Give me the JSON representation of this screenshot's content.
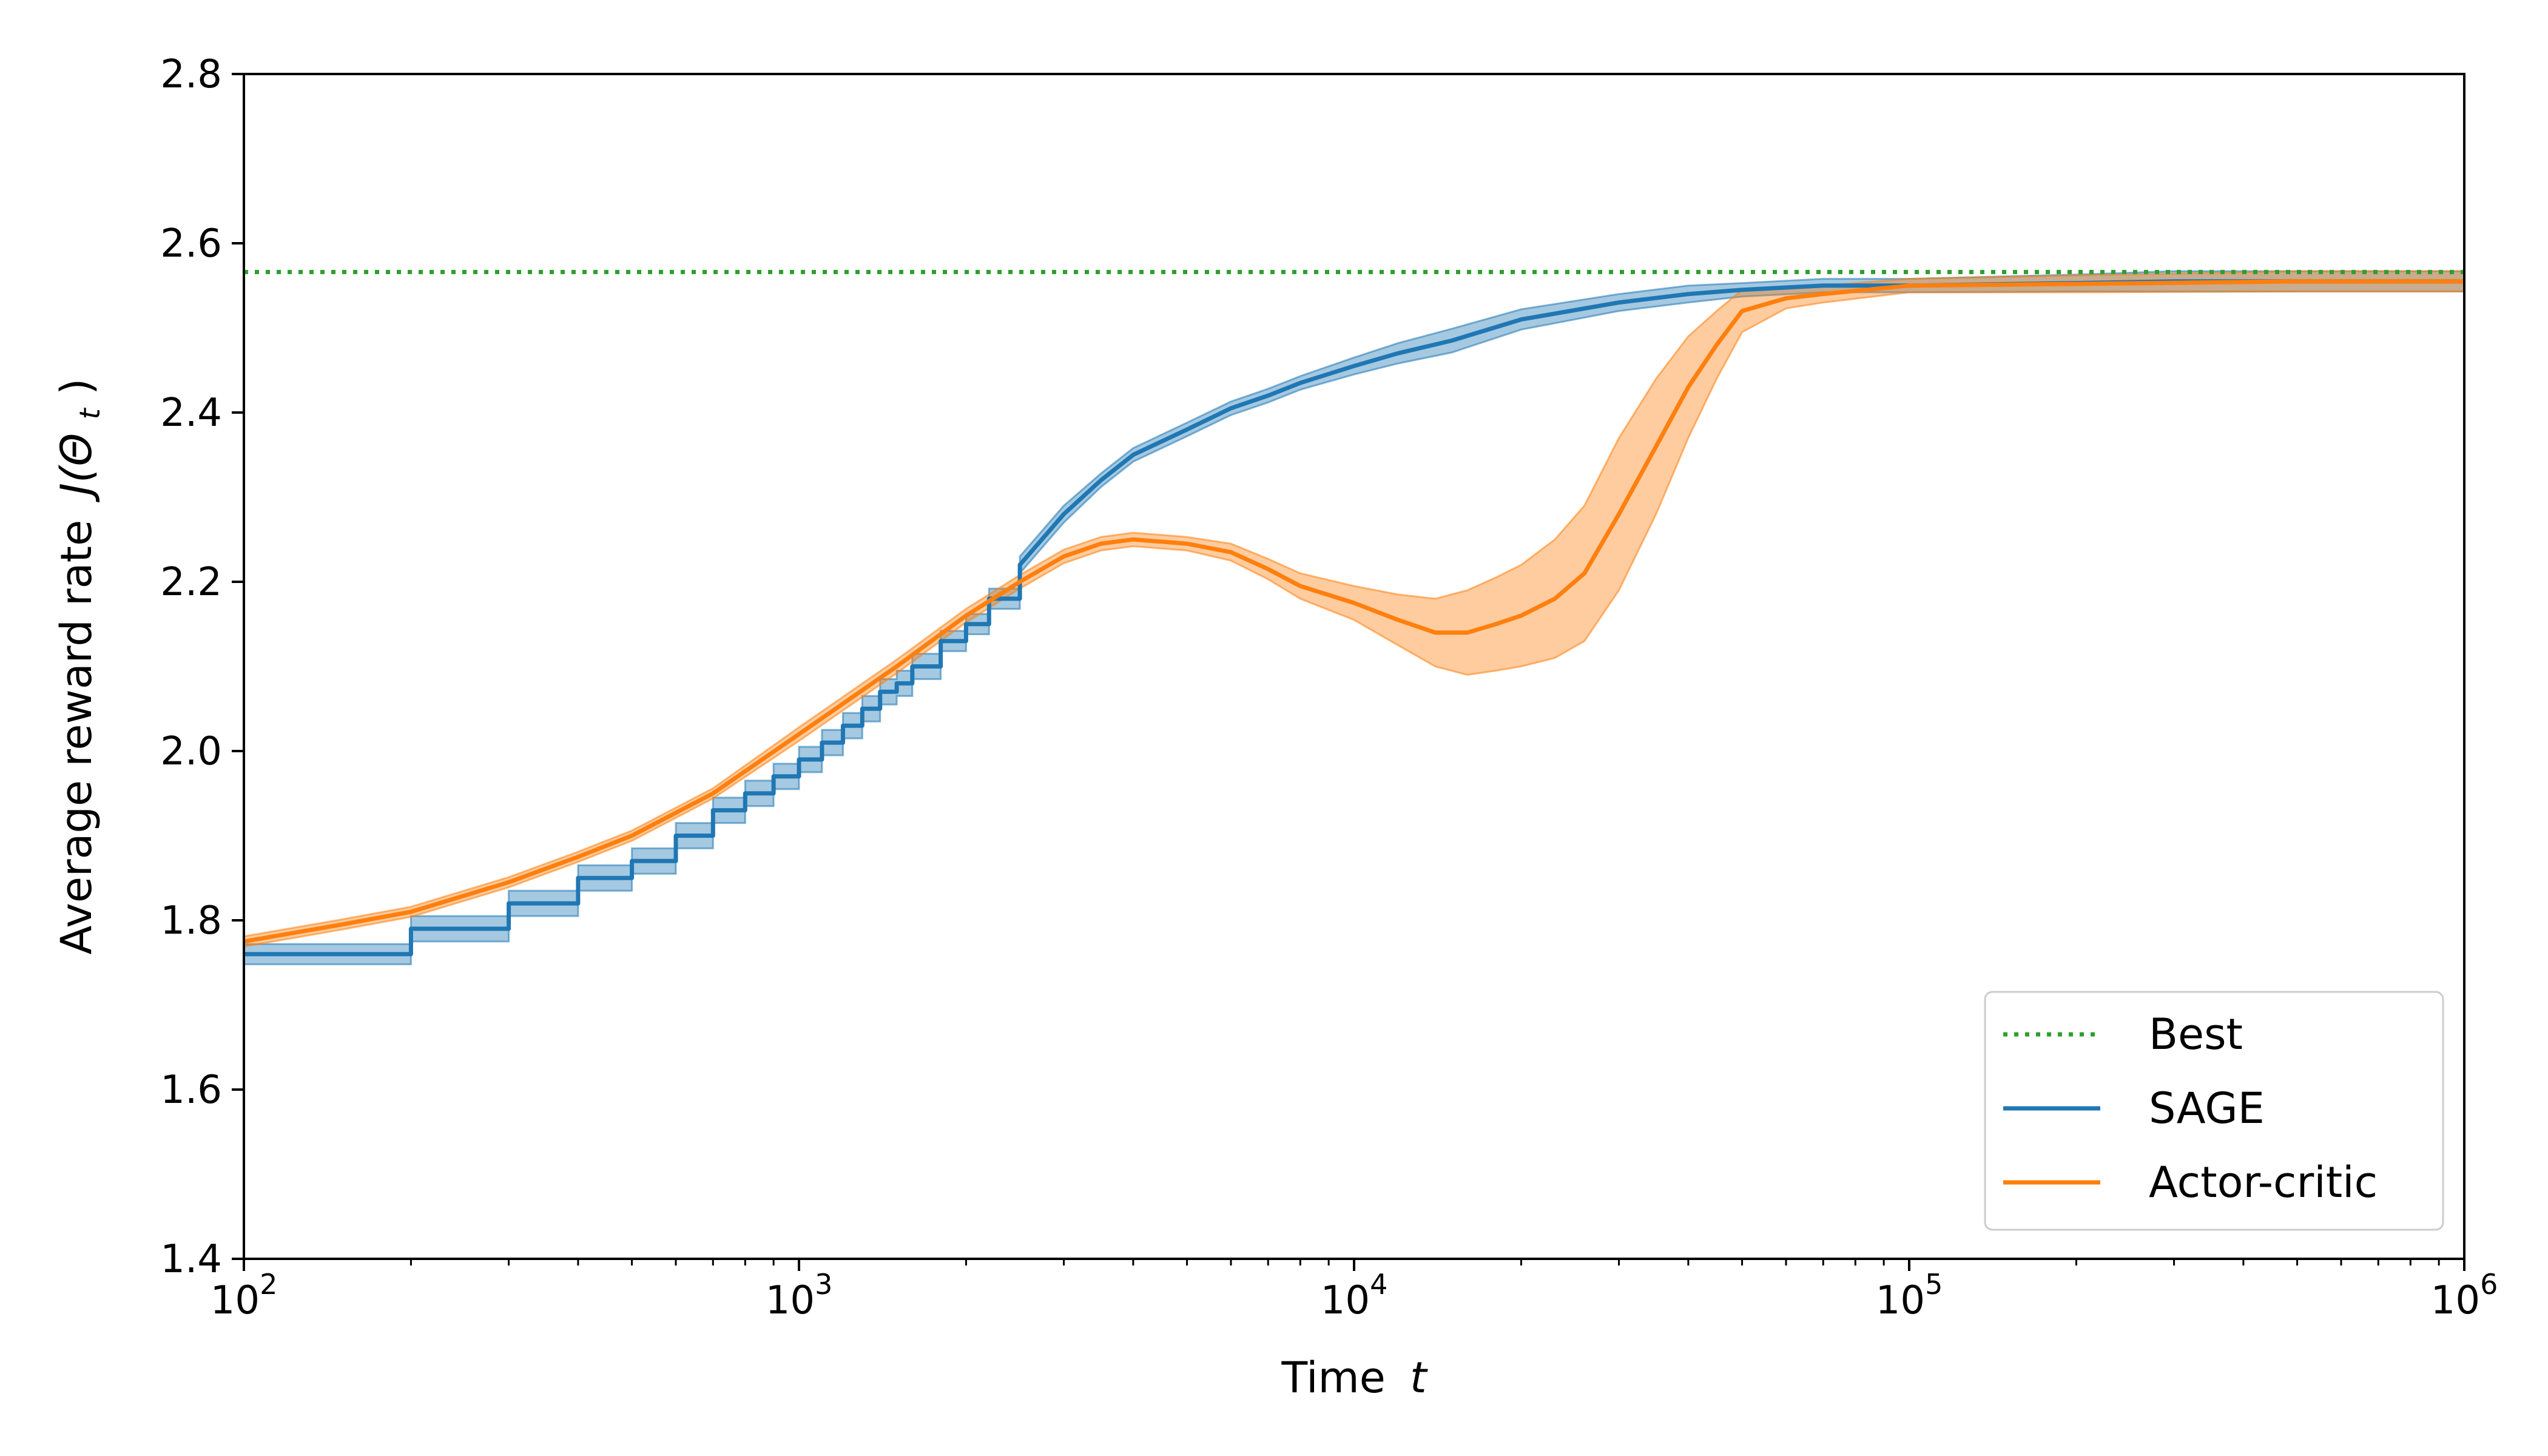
{
  "chart_data": {
    "type": "line",
    "title": "",
    "xlabel": "Time",
    "xlabel_var": "t",
    "ylabel": "Average reward rate",
    "ylabel_expr": "J(Θ",
    "ylabel_sub": "t",
    "ylabel_close": ")",
    "xscale": "log",
    "xlim": [
      100,
      1000000
    ],
    "ylim": [
      1.4,
      2.8
    ],
    "x_ticks": [
      {
        "base": "10",
        "exp": "2",
        "value": 100
      },
      {
        "base": "10",
        "exp": "3",
        "value": 1000
      },
      {
        "base": "10",
        "exp": "4",
        "value": 10000
      },
      {
        "base": "10",
        "exp": "5",
        "value": 100000
      },
      {
        "base": "10",
        "exp": "6",
        "value": 1000000
      }
    ],
    "y_ticks": [
      "1.4",
      "1.6",
      "1.8",
      "2.0",
      "2.2",
      "2.4",
      "2.6",
      "2.8"
    ],
    "grid": false,
    "legend_position": "lower-right",
    "colors": {
      "best": "#2ca02c",
      "sage": "#1f77b4",
      "actor_critic": "#ff7f0e",
      "axis": "#000000",
      "legend_border": "#cccccc"
    },
    "series": [
      {
        "name": "Best",
        "style": "dotted",
        "value": 2.566
      },
      {
        "name": "SAGE",
        "style": "solid",
        "x": [
          100,
          200,
          300,
          400,
          500,
          600,
          700,
          800,
          900,
          1000,
          1100,
          1200,
          1300,
          1400,
          1500,
          1600,
          1800,
          2000,
          2200,
          2500,
          3000,
          3500,
          4000,
          5000,
          6000,
          7000,
          8000,
          10000,
          12000,
          15000,
          20000,
          30000,
          40000,
          50000,
          70000,
          100000,
          200000,
          300000,
          500000,
          700000,
          1000000
        ],
        "y": [
          1.76,
          1.79,
          1.82,
          1.85,
          1.87,
          1.9,
          1.93,
          1.95,
          1.97,
          1.99,
          2.01,
          2.03,
          2.05,
          2.07,
          2.08,
          2.1,
          2.13,
          2.15,
          2.18,
          2.22,
          2.28,
          2.32,
          2.35,
          2.38,
          2.405,
          2.42,
          2.435,
          2.455,
          2.47,
          2.485,
          2.51,
          2.53,
          2.54,
          2.545,
          2.55,
          2.55,
          2.553,
          2.555,
          2.555,
          2.555,
          2.555
        ],
        "band": [
          0.012,
          0.015,
          0.015,
          0.015,
          0.015,
          0.015,
          0.015,
          0.015,
          0.015,
          0.015,
          0.015,
          0.015,
          0.015,
          0.015,
          0.015,
          0.015,
          0.012,
          0.012,
          0.012,
          0.01,
          0.01,
          0.008,
          0.008,
          0.008,
          0.008,
          0.008,
          0.008,
          0.01,
          0.012,
          0.014,
          0.012,
          0.01,
          0.01,
          0.008,
          0.008,
          0.008,
          0.01,
          0.012,
          0.012,
          0.012,
          0.012
        ]
      },
      {
        "name": "Actor-critic",
        "style": "solid",
        "x": [
          100,
          150,
          200,
          300,
          400,
          500,
          700,
          1000,
          1500,
          2000,
          2500,
          3000,
          3500,
          4000,
          5000,
          6000,
          7000,
          8000,
          10000,
          12000,
          14000,
          16000,
          18000,
          20000,
          23000,
          26000,
          30000,
          35000,
          40000,
          45000,
          50000,
          60000,
          70000,
          100000,
          200000,
          500000,
          1000000
        ],
        "y": [
          1.775,
          1.795,
          1.81,
          1.845,
          1.875,
          1.9,
          1.95,
          2.02,
          2.1,
          2.16,
          2.2,
          2.23,
          2.245,
          2.25,
          2.245,
          2.235,
          2.215,
          2.195,
          2.175,
          2.155,
          2.14,
          2.14,
          2.15,
          2.16,
          2.18,
          2.21,
          2.28,
          2.36,
          2.43,
          2.48,
          2.52,
          2.535,
          2.54,
          2.55,
          2.552,
          2.555,
          2.555
        ],
        "band": [
          0.006,
          0.006,
          0.006,
          0.006,
          0.006,
          0.006,
          0.006,
          0.008,
          0.008,
          0.008,
          0.008,
          0.008,
          0.008,
          0.008,
          0.008,
          0.01,
          0.012,
          0.015,
          0.02,
          0.03,
          0.04,
          0.05,
          0.055,
          0.06,
          0.07,
          0.08,
          0.09,
          0.08,
          0.06,
          0.04,
          0.025,
          0.012,
          0.01,
          0.008,
          0.01,
          0.012,
          0.012
        ]
      }
    ]
  }
}
